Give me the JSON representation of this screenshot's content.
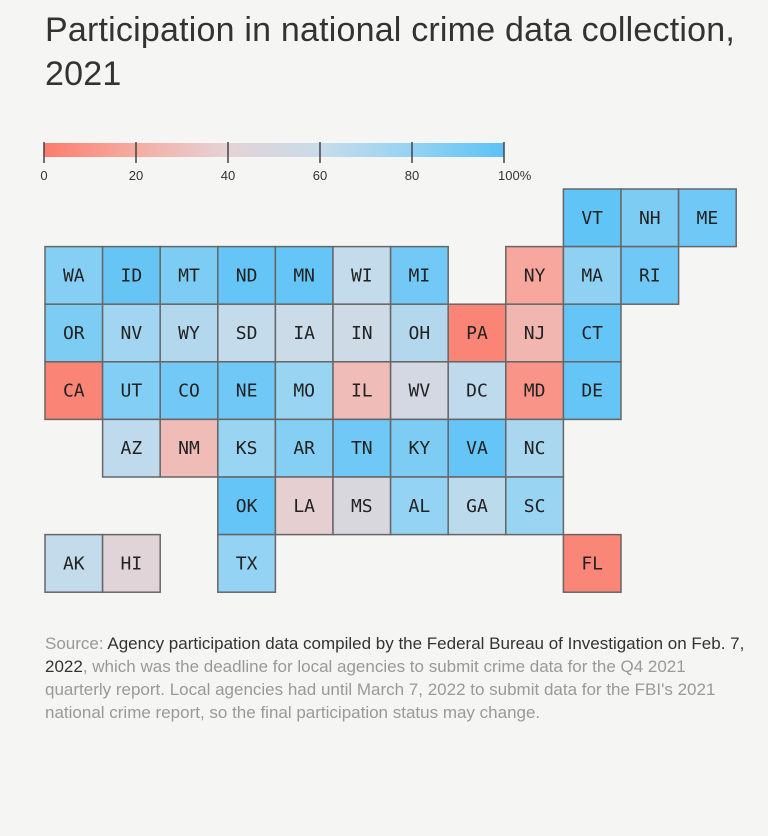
{
  "title": "Participation in national crime data collection, 2021",
  "chart_data": {
    "type": "heatmap",
    "subtype": "tile-grid-map",
    "title": "Participation in national crime data collection, 2021",
    "legend": {
      "ticks": [
        "0",
        "20",
        "40",
        "60",
        "80",
        "100%"
      ],
      "tick_values": [
        0,
        20,
        40,
        60,
        80,
        100
      ],
      "range": [
        0,
        100
      ],
      "colors": {
        "low": "#fb7d6d",
        "mid": "#dcdbe2",
        "high": "#5bc2f6"
      },
      "placement": "top"
    },
    "unit": "%",
    "tiles": [
      {
        "state": "VT",
        "row": 0,
        "col": 9,
        "value": 98
      },
      {
        "state": "NH",
        "row": 0,
        "col": 10,
        "value": 88
      },
      {
        "state": "ME",
        "row": 0,
        "col": 11,
        "value": 93
      },
      {
        "state": "WA",
        "row": 1,
        "col": 0,
        "value": 85
      },
      {
        "state": "ID",
        "row": 1,
        "col": 1,
        "value": 96
      },
      {
        "state": "MT",
        "row": 1,
        "col": 2,
        "value": 88
      },
      {
        "state": "ND",
        "row": 1,
        "col": 3,
        "value": 97
      },
      {
        "state": "MN",
        "row": 1,
        "col": 4,
        "value": 97
      },
      {
        "state": "WI",
        "row": 1,
        "col": 5,
        "value": 62
      },
      {
        "state": "MI",
        "row": 1,
        "col": 6,
        "value": 92
      },
      {
        "state": "NY",
        "row": 1,
        "col": 8,
        "value": 18
      },
      {
        "state": "MA",
        "row": 1,
        "col": 9,
        "value": 82
      },
      {
        "state": "RI",
        "row": 1,
        "col": 10,
        "value": 93
      },
      {
        "state": "OR",
        "row": 2,
        "col": 0,
        "value": 88
      },
      {
        "state": "NV",
        "row": 2,
        "col": 1,
        "value": 75
      },
      {
        "state": "WY",
        "row": 2,
        "col": 2,
        "value": 68
      },
      {
        "state": "SD",
        "row": 2,
        "col": 3,
        "value": 62
      },
      {
        "state": "IA",
        "row": 2,
        "col": 4,
        "value": 58
      },
      {
        "state": "IN",
        "row": 2,
        "col": 5,
        "value": 56
      },
      {
        "state": "OH",
        "row": 2,
        "col": 6,
        "value": 68
      },
      {
        "state": "PA",
        "row": 2,
        "col": 7,
        "value": 3
      },
      {
        "state": "NJ",
        "row": 2,
        "col": 8,
        "value": 25
      },
      {
        "state": "CT",
        "row": 2,
        "col": 9,
        "value": 97
      },
      {
        "state": "CA",
        "row": 3,
        "col": 0,
        "value": 3
      },
      {
        "state": "UT",
        "row": 3,
        "col": 1,
        "value": 86
      },
      {
        "state": "CO",
        "row": 3,
        "col": 2,
        "value": 92
      },
      {
        "state": "NE",
        "row": 3,
        "col": 3,
        "value": 93
      },
      {
        "state": "MO",
        "row": 3,
        "col": 4,
        "value": 78
      },
      {
        "state": "IL",
        "row": 3,
        "col": 5,
        "value": 28
      },
      {
        "state": "WV",
        "row": 3,
        "col": 6,
        "value": 52
      },
      {
        "state": "DC",
        "row": 3,
        "col": 7,
        "value": 64
      },
      {
        "state": "MD",
        "row": 3,
        "col": 8,
        "value": 10
      },
      {
        "state": "DE",
        "row": 3,
        "col": 9,
        "value": 97
      },
      {
        "state": "AZ",
        "row": 4,
        "col": 1,
        "value": 64
      },
      {
        "state": "NM",
        "row": 4,
        "col": 2,
        "value": 28
      },
      {
        "state": "KS",
        "row": 4,
        "col": 3,
        "value": 78
      },
      {
        "state": "AR",
        "row": 4,
        "col": 4,
        "value": 85
      },
      {
        "state": "TN",
        "row": 4,
        "col": 5,
        "value": 93
      },
      {
        "state": "KY",
        "row": 4,
        "col": 6,
        "value": 88
      },
      {
        "state": "VA",
        "row": 4,
        "col": 7,
        "value": 97
      },
      {
        "state": "NC",
        "row": 4,
        "col": 8,
        "value": 72
      },
      {
        "state": "OK",
        "row": 5,
        "col": 3,
        "value": 97
      },
      {
        "state": "LA",
        "row": 5,
        "col": 4,
        "value": 38
      },
      {
        "state": "MS",
        "row": 5,
        "col": 5,
        "value": 48
      },
      {
        "state": "AL",
        "row": 5,
        "col": 6,
        "value": 80
      },
      {
        "state": "GA",
        "row": 5,
        "col": 7,
        "value": 65
      },
      {
        "state": "SC",
        "row": 5,
        "col": 8,
        "value": 78
      },
      {
        "state": "AK",
        "row": 6,
        "col": 0,
        "value": 62
      },
      {
        "state": "HI",
        "row": 6,
        "col": 1,
        "value": 42
      },
      {
        "state": "TX",
        "row": 6,
        "col": 3,
        "value": 80
      },
      {
        "state": "FL",
        "row": 6,
        "col": 9,
        "value": 4
      }
    ]
  },
  "source": {
    "label": "Source:",
    "highlight": " Agency participation data compiled by the Federal Bureau of Investigation on Feb. 7, 2022",
    "rest": ", which was the deadline for local agencies to submit crime data for the Q4 2021 quarterly report. Local agencies had until March 7, 2022 to submit data for the FBI's 2021 national crime report, so the final participation status may change."
  }
}
